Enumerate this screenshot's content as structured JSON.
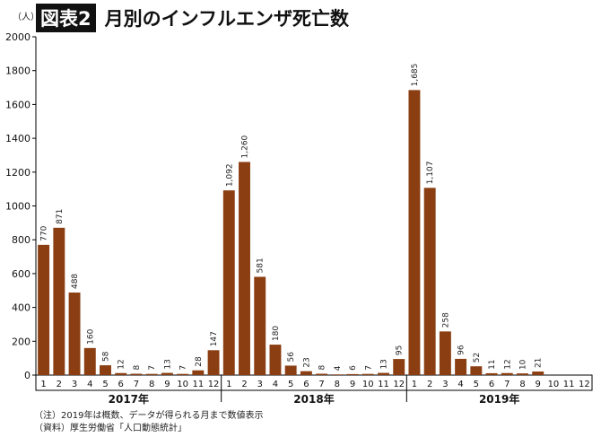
{
  "title_badge": "図表2",
  "title": "月別のインフルエンザ死亡数",
  "notes": [
    "（注）2019年は概数、データが得られる月まで数値表示",
    "（資料）厚生労働省「人口動態統計」"
  ],
  "chart_data": {
    "type": "bar",
    "ylabel": "（人）",
    "ylim": [
      0,
      2000
    ],
    "yticks": [
      0,
      200,
      400,
      600,
      800,
      1000,
      1200,
      1400,
      1600,
      1800,
      2000
    ],
    "bar_color": "#8B3E12",
    "groups": [
      {
        "name": "2017年",
        "categories": [
          "1",
          "2",
          "3",
          "4",
          "5",
          "6",
          "7",
          "8",
          "9",
          "10",
          "11",
          "12"
        ],
        "values": [
          770,
          871,
          488,
          160,
          58,
          12,
          8,
          7,
          13,
          7,
          28,
          147
        ],
        "labels": [
          "770",
          "871",
          "488",
          "160",
          "58",
          "12",
          "8",
          "7",
          "13",
          "7",
          "28",
          "147"
        ]
      },
      {
        "name": "2018年",
        "categories": [
          "1",
          "2",
          "3",
          "4",
          "5",
          "6",
          "7",
          "8",
          "9",
          "10",
          "11",
          "12"
        ],
        "values": [
          1092,
          1260,
          581,
          180,
          56,
          23,
          8,
          4,
          6,
          7,
          13,
          95
        ],
        "labels": [
          "1,092",
          "1,260",
          "581",
          "180",
          "56",
          "23",
          "8",
          "4",
          "6",
          "7",
          "13",
          "95"
        ]
      },
      {
        "name": "2019年",
        "categories": [
          "1",
          "2",
          "3",
          "4",
          "5",
          "6",
          "7",
          "8",
          "9",
          "10",
          "11",
          "12"
        ],
        "values": [
          1685,
          1107,
          258,
          96,
          52,
          11,
          12,
          10,
          21,
          null,
          null,
          null
        ],
        "labels": [
          "1,685",
          "1,107",
          "258",
          "96",
          "52",
          "11",
          "12",
          "10",
          "21",
          "",
          "",
          ""
        ]
      }
    ]
  }
}
